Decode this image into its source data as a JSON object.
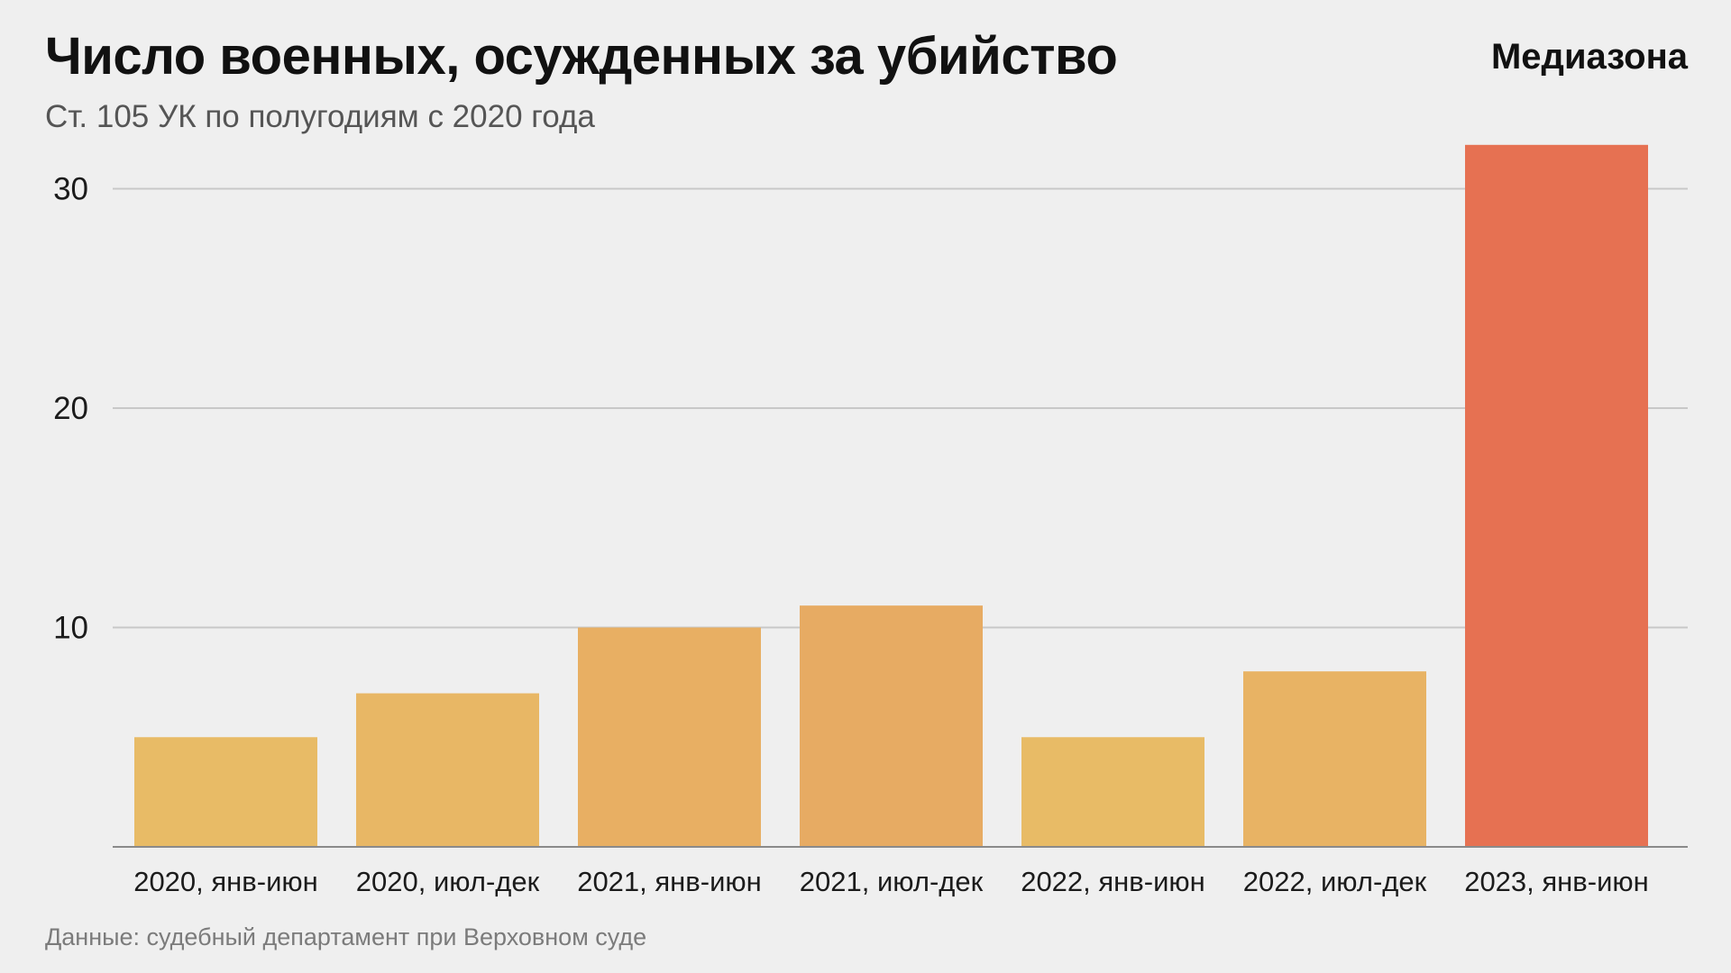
{
  "header": {
    "title": "Число военных, осужденных за убийство",
    "subtitle": "Ст. 105 УК по полугодиям с 2020 года",
    "brand": "Медиазона"
  },
  "footer": {
    "source": "Данные: судебный департамент при Верховном суде"
  },
  "chart_data": {
    "type": "bar",
    "title": "Число военных, осужденных за убийство",
    "subtitle": "Ст. 105 УК по полугодиям с 2020 года",
    "xlabel": "",
    "ylabel": "",
    "categories": [
      "2020, янв-июн",
      "2020, июл-дек",
      "2021, янв-июн",
      "2021, июл-дек",
      "2022, янв-июн",
      "2022, июл-дек",
      "2023, янв-июн"
    ],
    "values": [
      5,
      7,
      10,
      11,
      5,
      8,
      32
    ],
    "bar_colors": [
      "#e8bb66",
      "#e8b765",
      "#e8af63",
      "#e7ab63",
      "#e8bb66",
      "#e8b364",
      "#e67152"
    ],
    "yticks": [
      10,
      20,
      30
    ],
    "ylim": [
      0,
      32
    ],
    "grid": true,
    "gridline_color": "#c8c8c8"
  }
}
